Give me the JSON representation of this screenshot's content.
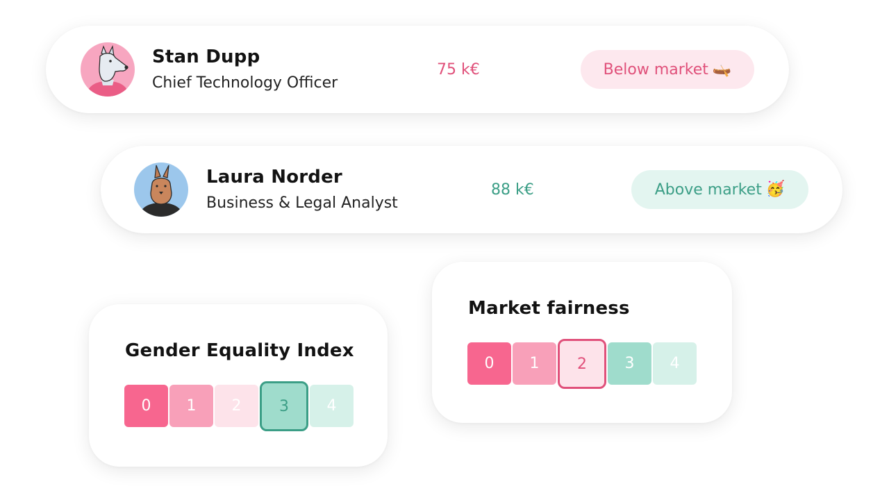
{
  "employees": [
    {
      "name": "Stan Dupp",
      "role": "Chief Technology Officer",
      "salary": "75 k€",
      "badge": "Below market",
      "badge_emoji": "🛶",
      "status_color": "#e0507a",
      "avatar": "dog-avatar-icon"
    },
    {
      "name": "Laura Norder",
      "role": "Business & Legal Analyst",
      "salary": "88 k€",
      "badge": "Above market",
      "badge_emoji": "🥳",
      "status_color": "#3b9e86",
      "avatar": "kangaroo-avatar-icon"
    }
  ],
  "gender_index": {
    "title": "Gender Equality Index",
    "scale": [
      "0",
      "1",
      "2",
      "3",
      "4"
    ],
    "selected": 3
  },
  "market_fairness": {
    "title": "Market fairness",
    "scale": [
      "0",
      "1",
      "2",
      "3",
      "4"
    ],
    "selected": 2
  }
}
